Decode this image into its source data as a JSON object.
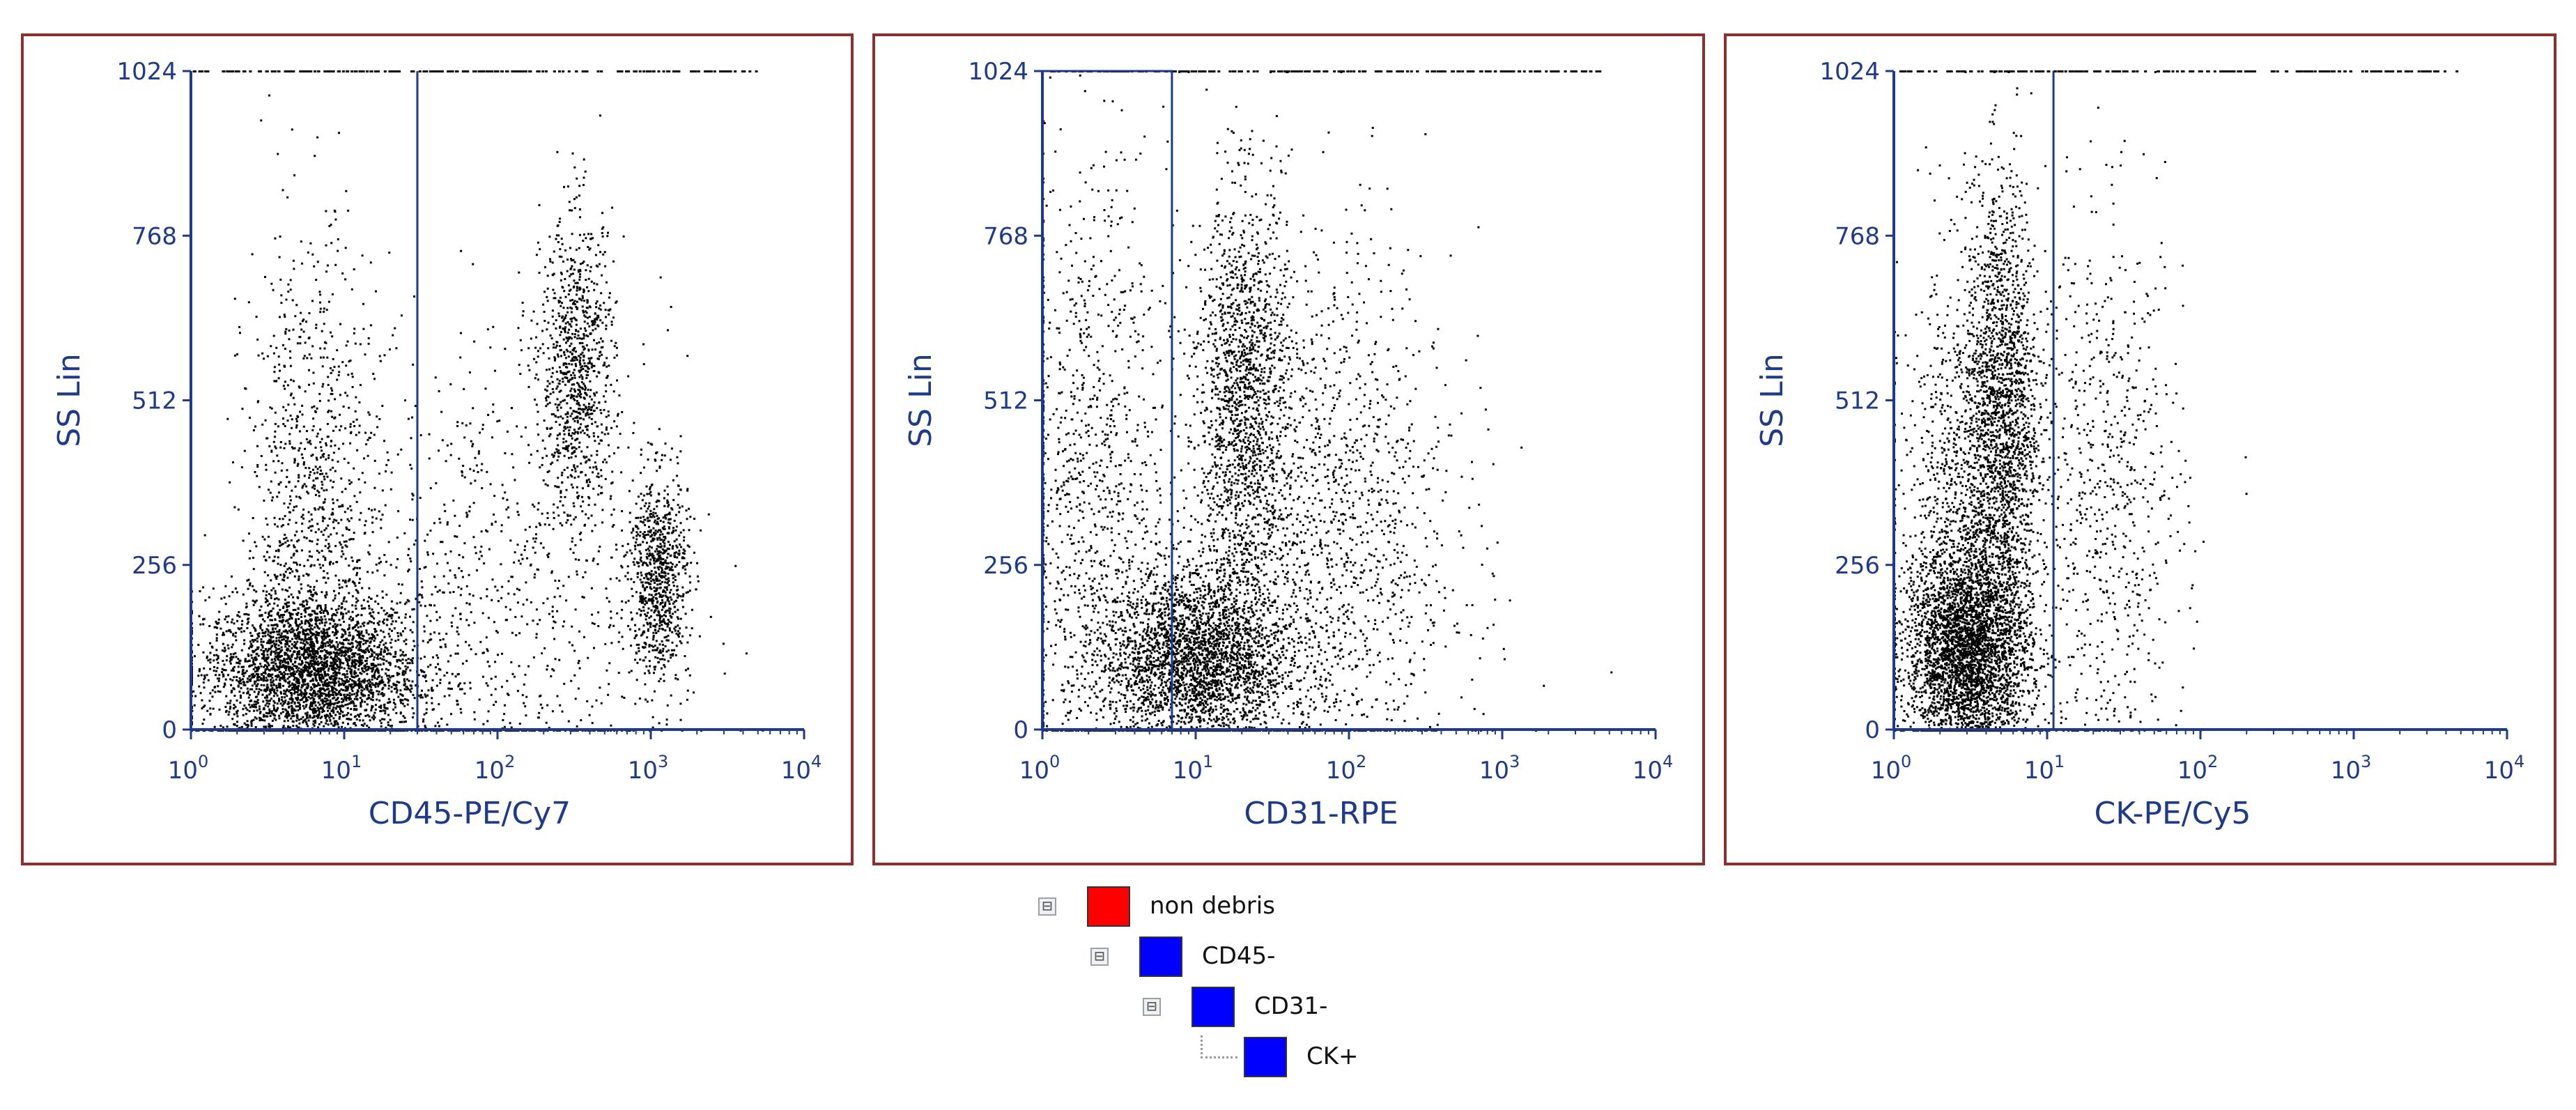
{
  "colors": {
    "border": "#8b2f2f",
    "axis": "#1e3a8a",
    "gate": "#1e3a8a",
    "dots": "#000000",
    "node_red": "#ff0000",
    "node_blue": "#0000ff"
  },
  "chart_data": [
    {
      "type": "scatter",
      "xlabel": "CD45-PE/Cy7",
      "ylabel": "SS Lin",
      "x_scale": "log",
      "xlim": [
        1,
        10000
      ],
      "ylim": [
        0,
        1024
      ],
      "yticks": [
        "0",
        "256",
        "512",
        "768",
        "1024"
      ],
      "xticks": [
        {
          "base": "10",
          "exp": "0"
        },
        {
          "base": "10",
          "exp": "1"
        },
        {
          "base": "10",
          "exp": "2"
        },
        {
          "base": "10",
          "exp": "3"
        },
        {
          "base": "10",
          "exp": "4"
        }
      ],
      "gates": [
        {
          "type": "vertical",
          "x": 30
        }
      ],
      "clusters": [
        {
          "x": 6,
          "y": 90,
          "spread_log": 0.35,
          "spread_y": 60,
          "weight": 0.45
        },
        {
          "x": 6,
          "y": 320,
          "spread_log": 0.22,
          "spread_y": 220,
          "weight": 0.15
        },
        {
          "x": 330,
          "y": 560,
          "spread_log": 0.12,
          "spread_y": 120,
          "weight": 0.13
        },
        {
          "x": 1100,
          "y": 240,
          "spread_log": 0.1,
          "spread_y": 80,
          "weight": 0.12
        },
        {
          "x": 80,
          "y": 180,
          "spread_log": 0.6,
          "spread_y": 220,
          "weight": 0.15
        }
      ]
    },
    {
      "type": "scatter",
      "xlabel": "CD31-RPE",
      "ylabel": "SS Lin",
      "x_scale": "log",
      "xlim": [
        1,
        10000
      ],
      "ylim": [
        0,
        1024
      ],
      "yticks": [
        "0",
        "256",
        "512",
        "768",
        "1024"
      ],
      "xticks": [
        {
          "base": "10",
          "exp": "0"
        },
        {
          "base": "10",
          "exp": "1"
        },
        {
          "base": "10",
          "exp": "2"
        },
        {
          "base": "10",
          "exp": "3"
        },
        {
          "base": "10",
          "exp": "4"
        }
      ],
      "gates": [
        {
          "type": "rect",
          "x0": 1,
          "x1": 7,
          "y0": 0,
          "y1": 1024
        }
      ],
      "clusters": [
        {
          "x": 10,
          "y": 110,
          "spread_log": 0.3,
          "spread_y": 70,
          "weight": 0.4
        },
        {
          "x": 20,
          "y": 520,
          "spread_log": 0.15,
          "spread_y": 160,
          "weight": 0.2
        },
        {
          "x": 2,
          "y": 350,
          "spread_log": 0.25,
          "spread_y": 260,
          "weight": 0.15
        },
        {
          "x": 60,
          "y": 300,
          "spread_log": 0.45,
          "spread_y": 230,
          "weight": 0.25
        }
      ]
    },
    {
      "type": "scatter",
      "xlabel": "CK-PE/Cy5",
      "ylabel": "SS Lin",
      "x_scale": "log",
      "xlim": [
        1,
        10000
      ],
      "ylim": [
        0,
        1024
      ],
      "yticks": [
        "0",
        "256",
        "512",
        "768",
        "1024"
      ],
      "xticks": [
        {
          "base": "10",
          "exp": "0"
        },
        {
          "base": "10",
          "exp": "1"
        },
        {
          "base": "10",
          "exp": "2"
        },
        {
          "base": "10",
          "exp": "3"
        },
        {
          "base": "10",
          "exp": "4"
        }
      ],
      "gates": [
        {
          "type": "vertical",
          "x": 11
        }
      ],
      "clusters": [
        {
          "x": 3,
          "y": 120,
          "spread_log": 0.2,
          "spread_y": 80,
          "weight": 0.45
        },
        {
          "x": 5,
          "y": 500,
          "spread_log": 0.12,
          "spread_y": 180,
          "weight": 0.25
        },
        {
          "x": 3,
          "y": 300,
          "spread_log": 0.22,
          "spread_y": 200,
          "weight": 0.2
        },
        {
          "x": 25,
          "y": 350,
          "spread_log": 0.25,
          "spread_y": 220,
          "weight": 0.1
        }
      ]
    }
  ],
  "gate_tree": [
    {
      "label": "non debris",
      "color": "#ff0000",
      "toggle": "⊟",
      "level": 0
    },
    {
      "label": "CD45-",
      "color": "#0000ff",
      "toggle": "⊟",
      "level": 1
    },
    {
      "label": "CD31-",
      "color": "#0000ff",
      "toggle": "⊟",
      "level": 2
    },
    {
      "label": "CK+",
      "color": "#0000ff",
      "toggle": "",
      "level": 3
    }
  ]
}
